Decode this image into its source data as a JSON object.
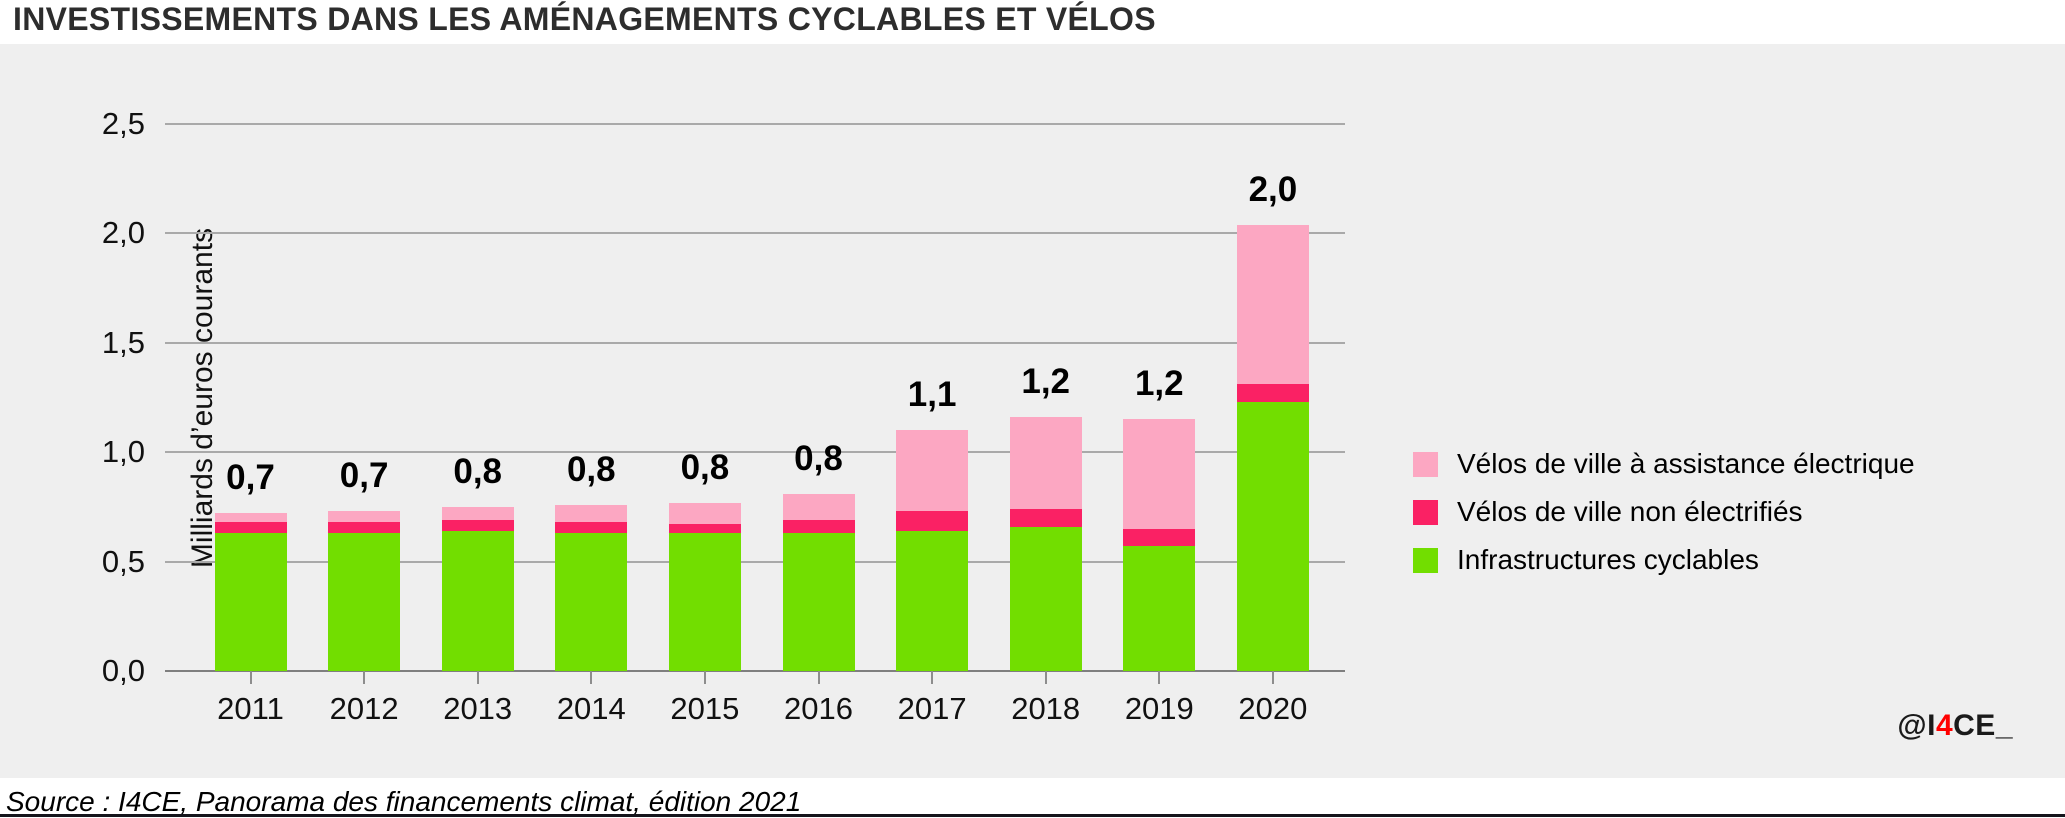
{
  "header": {
    "title": "INVESTISSEMENTS DANS LES AMÉNAGEMENTS CYCLABLES ET VÉLOS"
  },
  "axis": {
    "y_title": "Milliards d’euros courants"
  },
  "legend": {
    "items": [
      {
        "label": "Vélos de ville à assistance électrique",
        "color": "#FCA7C2"
      },
      {
        "label": "Vélos de ville non électrifiés",
        "color": "#FA2164"
      },
      {
        "label": "Infrastructures cyclables",
        "color": "#72DE00"
      }
    ]
  },
  "watermark": {
    "prefix": "@I",
    "accent": "4",
    "suffix": "CE_",
    "accent_color": "#ff0000"
  },
  "source": {
    "text": "Source : I4CE, Panorama des financements climat, édition 2021"
  },
  "chart_data": {
    "type": "bar",
    "stacked": true,
    "title": "INVESTISSEMENTS DANS LES AMÉNAGEMENTS CYCLABLES ET VÉLOS",
    "ylabel": "Milliards d’euros courants",
    "ylim": [
      0,
      2.5
    ],
    "y_tick_step": 0.5,
    "y_ticks": [
      "0,0",
      "0,5",
      "1,0",
      "1,5",
      "2,0",
      "2,5"
    ],
    "grid": true,
    "legend_position": "right",
    "plot_background": "#efefef",
    "categories": [
      "2011",
      "2012",
      "2013",
      "2014",
      "2015",
      "2016",
      "2017",
      "2018",
      "2019",
      "2020"
    ],
    "series": [
      {
        "name": "Infrastructures cyclables",
        "color": "#72DE00",
        "values": [
          0.63,
          0.63,
          0.64,
          0.63,
          0.63,
          0.63,
          0.64,
          0.66,
          0.57,
          1.23
        ]
      },
      {
        "name": "Vélos de ville non électrifiés",
        "color": "#FA2164",
        "values": [
          0.05,
          0.05,
          0.05,
          0.05,
          0.04,
          0.06,
          0.09,
          0.08,
          0.08,
          0.08
        ]
      },
      {
        "name": "Vélos de ville à assistance électrique",
        "color": "#FCA7C2",
        "values": [
          0.04,
          0.05,
          0.06,
          0.08,
          0.1,
          0.12,
          0.37,
          0.42,
          0.5,
          0.73
        ]
      }
    ],
    "total_labels": [
      "0,7",
      "0,7",
      "0,8",
      "0,8",
      "0,8",
      "0,8",
      "1,1",
      "1,2",
      "1,2",
      "2,0"
    ]
  }
}
